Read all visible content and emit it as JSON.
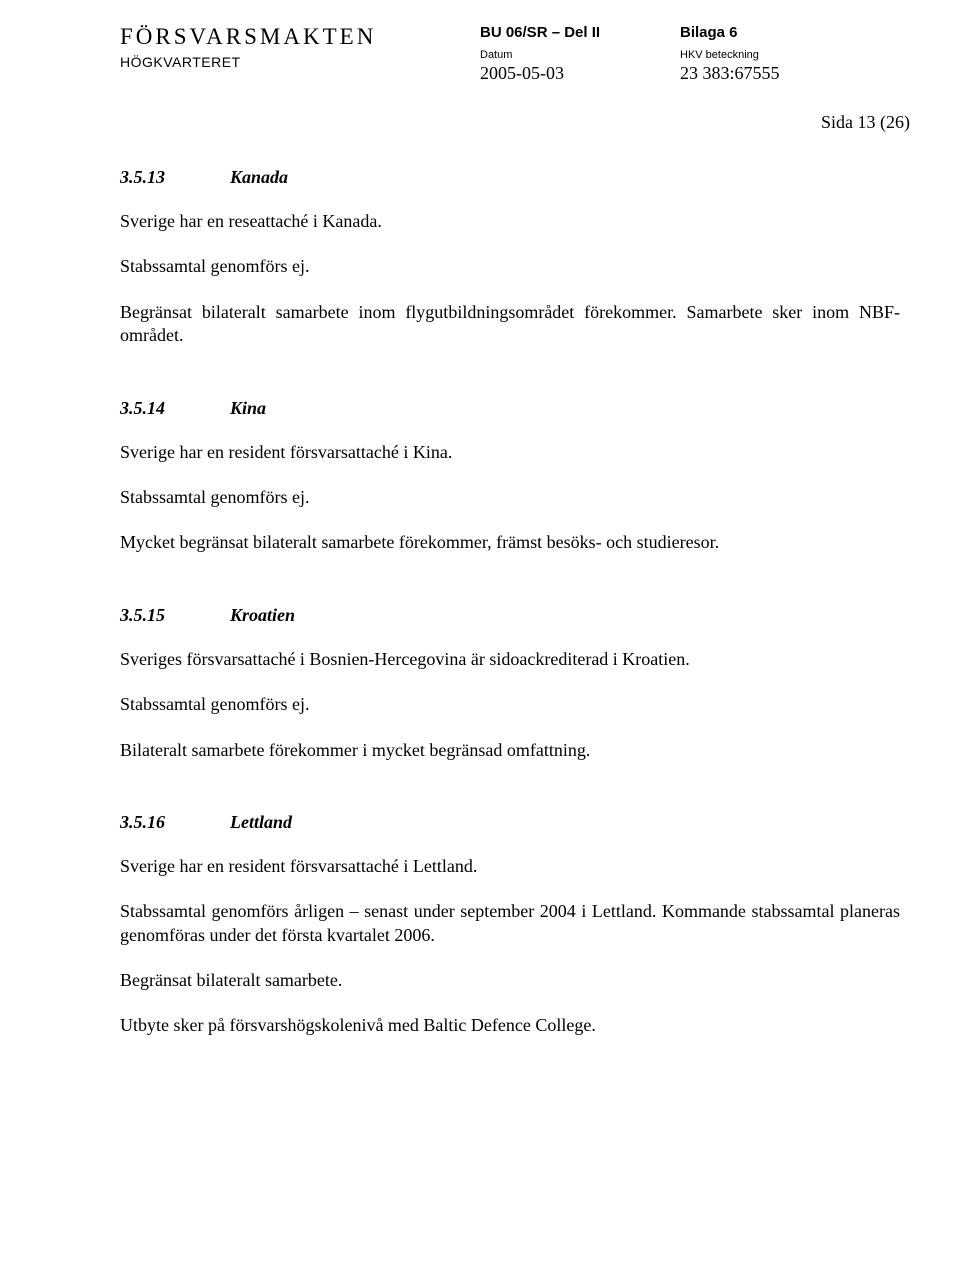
{
  "header": {
    "org_name": "FÖRSVARSMAKTEN",
    "org_sub": "HÖGKVARTERET",
    "doc_ref": "BU 06/SR – Del II",
    "bilaga": "Bilaga 6",
    "datum_label": "Datum",
    "datum_value": "2005-05-03",
    "beteckning_label": "HKV beteckning",
    "beteckning_value": "23 383:67555",
    "page_label": "Sida 13 (26)"
  },
  "sections": {
    "s1": {
      "num": "3.5.13",
      "title": "Kanada",
      "p1": "Sverige har en reseattaché i Kanada.",
      "p2": "Stabssamtal genomförs ej.",
      "p3": "Begränsat bilateralt samarbete inom flygutbildningsområdet förekommer. Samarbete sker inom NBF-området."
    },
    "s2": {
      "num": "3.5.14",
      "title": "Kina",
      "p1": "Sverige har en resident försvarsattaché i Kina.",
      "p2": "Stabssamtal genomförs ej.",
      "p3": "Mycket begränsat bilateralt samarbete förekommer, främst besöks- och studieresor."
    },
    "s3": {
      "num": "3.5.15",
      "title": "Kroatien",
      "p1": "Sveriges försvarsattaché i Bosnien-Hercegovina är sidoackrediterad i Kroatien.",
      "p2": "Stabssamtal genomförs ej.",
      "p3": "Bilateralt samarbete förekommer i mycket begränsad omfattning."
    },
    "s4": {
      "num": "3.5.16",
      "title": "Lettland",
      "p1": "Sverige har en resident försvarsattaché i Lettland.",
      "p2": "Stabssamtal genomförs årligen – senast under september 2004 i Lettland. Kommande stabssamtal planeras genomföras under det första kvartalet 2006.",
      "p3": "Begränsat bilateralt samarbete.",
      "p4": "Utbyte sker på försvarshögskolenivå med Baltic Defence College."
    }
  }
}
